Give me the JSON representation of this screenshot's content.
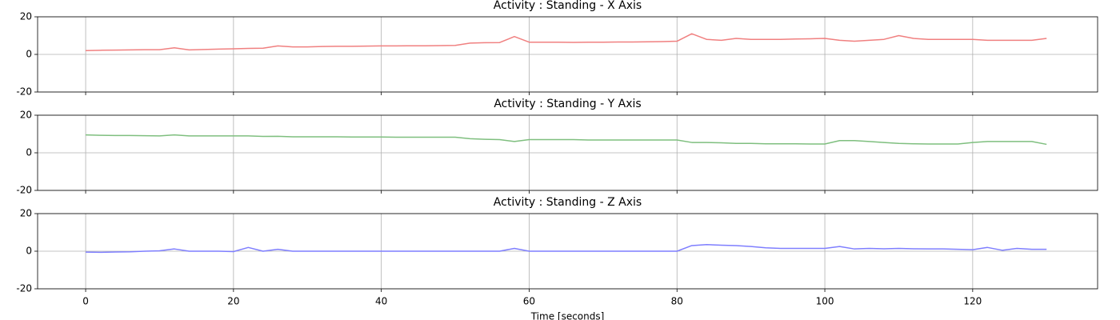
{
  "chart_data": [
    {
      "type": "line",
      "title": "Activity : Standing - X Axis",
      "x": [
        0,
        2,
        4,
        6,
        8,
        10,
        12,
        14,
        16,
        18,
        20,
        22,
        24,
        26,
        28,
        30,
        32,
        34,
        36,
        38,
        40,
        42,
        44,
        46,
        48,
        50,
        52,
        54,
        56,
        58,
        60,
        62,
        64,
        66,
        68,
        70,
        72,
        74,
        76,
        78,
        80,
        82,
        84,
        86,
        88,
        90,
        92,
        94,
        96,
        98,
        100,
        102,
        104,
        106,
        108,
        110,
        112,
        114,
        116,
        118,
        120,
        122,
        124,
        126,
        128,
        130
      ],
      "values": [
        2,
        2.2,
        2.3,
        2.4,
        2.5,
        2.5,
        3.5,
        2.4,
        2.6,
        2.8,
        3,
        3.2,
        3.3,
        4.5,
        4,
        4,
        4.2,
        4.3,
        4.3,
        4.4,
        4.5,
        4.5,
        4.6,
        4.6,
        4.7,
        4.8,
        6,
        6.2,
        6.3,
        9.5,
        6.5,
        6.5,
        6.5,
        6.4,
        6.5,
        6.5,
        6.6,
        6.6,
        6.7,
        6.8,
        7,
        11,
        8,
        7.5,
        8.5,
        8,
        8,
        8,
        8.2,
        8.3,
        8.5,
        7.5,
        7,
        7.5,
        8,
        10,
        8.5,
        8,
        8,
        8,
        8,
        7.5,
        7.5,
        7.5,
        7.5,
        8.5
      ],
      "color": "#f08080",
      "xlim": [
        -6.5,
        136.9
      ],
      "ylim": [
        -20,
        20
      ],
      "xticks": [
        0,
        20,
        40,
        60,
        80,
        100,
        120
      ],
      "yticks": [
        -20,
        0,
        20
      ],
      "grid": true
    },
    {
      "type": "line",
      "title": "Activity : Standing - Y Axis",
      "x": [
        0,
        2,
        4,
        6,
        8,
        10,
        12,
        14,
        16,
        18,
        20,
        22,
        24,
        26,
        28,
        30,
        32,
        34,
        36,
        38,
        40,
        42,
        44,
        46,
        48,
        50,
        52,
        54,
        56,
        58,
        60,
        62,
        64,
        66,
        68,
        70,
        72,
        74,
        76,
        78,
        80,
        82,
        84,
        86,
        88,
        90,
        92,
        94,
        96,
        98,
        100,
        102,
        104,
        106,
        108,
        110,
        112,
        114,
        116,
        118,
        120,
        122,
        124,
        126,
        128,
        130
      ],
      "values": [
        9.5,
        9.3,
        9.2,
        9.2,
        9.1,
        9,
        9.5,
        9,
        9,
        9,
        9,
        9,
        8.7,
        8.8,
        8.5,
        8.5,
        8.5,
        8.5,
        8.4,
        8.4,
        8.4,
        8.3,
        8.3,
        8.3,
        8.3,
        8.3,
        7.5,
        7.2,
        7,
        6,
        7,
        7,
        7,
        7,
        6.8,
        6.8,
        6.8,
        6.8,
        6.8,
        6.8,
        6.8,
        5.5,
        5.5,
        5.3,
        5,
        5,
        4.8,
        4.8,
        4.8,
        4.7,
        4.7,
        6.5,
        6.5,
        6,
        5.5,
        5,
        4.8,
        4.7,
        4.7,
        4.7,
        5.5,
        6,
        6,
        6,
        6,
        4.5
      ],
      "color": "#7fbf7f",
      "xlim": [
        -6.5,
        136.9
      ],
      "ylim": [
        -20,
        20
      ],
      "xticks": [
        0,
        20,
        40,
        60,
        80,
        100,
        120
      ],
      "yticks": [
        -20,
        0,
        20
      ],
      "grid": true
    },
    {
      "type": "line",
      "title": "Activity : Standing - Z Axis",
      "xlabel": "Time [seconds]",
      "x": [
        0,
        2,
        4,
        6,
        8,
        10,
        12,
        14,
        16,
        18,
        20,
        22,
        24,
        26,
        28,
        30,
        32,
        34,
        36,
        38,
        40,
        42,
        44,
        46,
        48,
        50,
        52,
        54,
        56,
        58,
        60,
        62,
        64,
        66,
        68,
        70,
        72,
        74,
        76,
        78,
        80,
        82,
        84,
        86,
        88,
        90,
        92,
        94,
        96,
        98,
        100,
        102,
        104,
        106,
        108,
        110,
        112,
        114,
        116,
        118,
        120,
        122,
        124,
        126,
        128,
        130
      ],
      "values": [
        -0.5,
        -0.6,
        -0.4,
        -0.3,
        0,
        0.2,
        1.2,
        0,
        0,
        0,
        -0.2,
        2,
        0,
        1,
        0,
        0,
        0,
        0,
        0,
        0,
        0,
        0,
        0,
        0,
        0,
        0,
        0,
        0,
        0,
        1.5,
        0,
        0,
        0,
        0,
        0,
        0,
        0,
        0,
        0,
        0,
        0,
        3,
        3.5,
        3.2,
        3,
        2.5,
        1.8,
        1.5,
        1.5,
        1.5,
        1.5,
        2.5,
        1.2,
        1.5,
        1.3,
        1.5,
        1.3,
        1.2,
        1.2,
        1,
        0.8,
        2,
        0.5,
        1.5,
        1,
        1
      ],
      "color": "#7f7fff",
      "xlim": [
        -6.5,
        136.9
      ],
      "ylim": [
        -20,
        20
      ],
      "xticks": [
        0,
        20,
        40,
        60,
        80,
        100,
        120
      ],
      "yticks": [
        -20,
        0,
        20
      ],
      "grid": true
    }
  ]
}
